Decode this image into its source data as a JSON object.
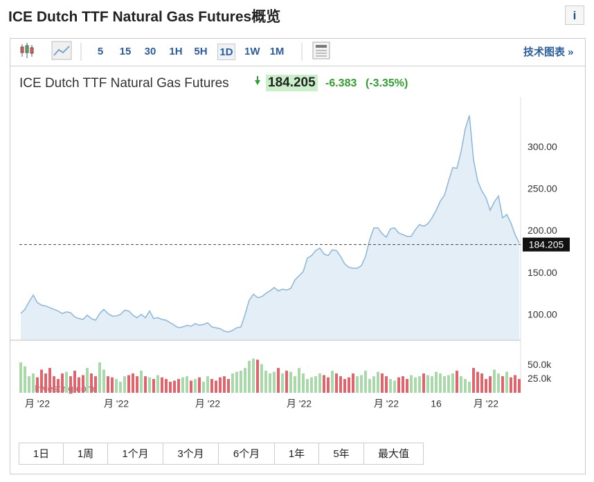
{
  "header": {
    "title": "ICE Dutch TTF Natural Gas Futures概览",
    "info": "i"
  },
  "toolbar": {
    "intervals": [
      "5",
      "15",
      "30",
      "1H",
      "5H",
      "1D",
      "1W",
      "1M"
    ],
    "selected": "1D",
    "tech": "技术图表 »"
  },
  "quote": {
    "name": "ICE Dutch TTF Natural Gas Futures",
    "last": 184.205,
    "change": -6.383,
    "change_pct": "(-3.35%)"
  },
  "watermark": "Investing.com",
  "chart_data": [
    {
      "type": "line",
      "color": "#8ab6d8",
      "fill": "#e4eef6",
      "categories": [
        null,
        null,
        null,
        null,
        "月 '22",
        null,
        null,
        null,
        null,
        null,
        null,
        null,
        null,
        null,
        null,
        null,
        null,
        null,
        null,
        null,
        null,
        null,
        null,
        "月 '22",
        null,
        null,
        null,
        null,
        null,
        null,
        null,
        null,
        null,
        null,
        null,
        null,
        null,
        null,
        null,
        null,
        null,
        null,
        null,
        null,
        null,
        "月 '22",
        null,
        null,
        null,
        null,
        null,
        null,
        null,
        null,
        null,
        null,
        null,
        null,
        null,
        null,
        null,
        null,
        null,
        null,
        null,
        null,
        null,
        "月 '22",
        null,
        null,
        null,
        null,
        null,
        null,
        null,
        null,
        null,
        null,
        null,
        null,
        null,
        null,
        null,
        null,
        null,
        null,
        null,
        null,
        "月 '22",
        null,
        null,
        null,
        null,
        null,
        null,
        null,
        null,
        null,
        null,
        null,
        "16",
        null,
        null,
        null,
        null,
        null,
        null,
        null,
        null,
        null,
        null,
        null,
        "月 '22",
        null,
        null,
        null,
        null,
        null,
        null,
        null,
        null
      ],
      "values": [
        102,
        107,
        116,
        124,
        115,
        112,
        111,
        109,
        107,
        105,
        102,
        104,
        103,
        98,
        96,
        95,
        100,
        96,
        94,
        102,
        107,
        102,
        99,
        99,
        101,
        106,
        105,
        100,
        97,
        101,
        97,
        105,
        96,
        97,
        95,
        94,
        91,
        88,
        85,
        86,
        88,
        87,
        90,
        88,
        89,
        91,
        86,
        85,
        84,
        81,
        80,
        82,
        85,
        86,
        101,
        118,
        125,
        121,
        122,
        126,
        129,
        133,
        129,
        131,
        130,
        132,
        142,
        147,
        152,
        168,
        171,
        177,
        180,
        173,
        171,
        178,
        177,
        170,
        161,
        157,
        156,
        156,
        159,
        170,
        190,
        204,
        204,
        197,
        193,
        203,
        204,
        198,
        196,
        194,
        194,
        202,
        208,
        206,
        209,
        216,
        225,
        236,
        243,
        260,
        276,
        275,
        295,
        322,
        338,
        285,
        260,
        248,
        240,
        225,
        235,
        242,
        216,
        220,
        210,
        196,
        186
      ],
      "ylim": [
        71,
        352
      ],
      "yticks": [
        {
          "value": 100,
          "label": "100.00"
        },
        {
          "value": 150,
          "label": "150.00"
        },
        {
          "value": 200,
          "label": "200.00"
        },
        {
          "value": 250,
          "label": "250.00"
        },
        {
          "value": 300,
          "label": "300.00"
        }
      ]
    },
    {
      "type": "bar",
      "up_color": "#a9d8a9",
      "down_color": "#e0646c",
      "values": [
        55000,
        48000,
        30000,
        35000,
        28000,
        42000,
        35000,
        45000,
        30000,
        25000,
        35000,
        38000,
        30000,
        40000,
        28000,
        32000,
        45000,
        35000,
        30000,
        55000,
        42000,
        30000,
        28000,
        25000,
        20000,
        30000,
        32000,
        35000,
        30000,
        40000,
        30000,
        28000,
        25000,
        32000,
        28000,
        25000,
        20000,
        22000,
        25000,
        28000,
        30000,
        22000,
        25000,
        28000,
        20000,
        30000,
        25000,
        22000,
        28000,
        30000,
        25000,
        35000,
        38000,
        40000,
        45000,
        58000,
        62000,
        60000,
        52000,
        40000,
        35000,
        38000,
        45000,
        35000,
        40000,
        38000,
        30000,
        45000,
        35000,
        25000,
        28000,
        30000,
        35000,
        32000,
        28000,
        40000,
        35000,
        30000,
        25000,
        28000,
        35000,
        30000,
        32000,
        40000,
        25000,
        30000,
        38000,
        35000,
        30000,
        25000,
        22000,
        28000,
        30000,
        25000,
        32000,
        28000,
        30000,
        35000,
        32000,
        30000,
        38000,
        35000,
        30000,
        32000,
        35000,
        40000,
        30000,
        25000,
        20000,
        45000,
        38000,
        35000,
        25000,
        30000,
        42000,
        35000,
        30000,
        38000,
        28000,
        32000,
        25000
      ],
      "ylim": [
        0,
        94000
      ],
      "yticks": [
        {
          "value": 25000,
          "label": "25.0k"
        },
        {
          "value": 50000,
          "label": "50.0k"
        }
      ]
    }
  ],
  "ranges": [
    "1日",
    "1周",
    "1个月",
    "3个月",
    "6个月",
    "1年",
    "5年",
    "最大值"
  ]
}
